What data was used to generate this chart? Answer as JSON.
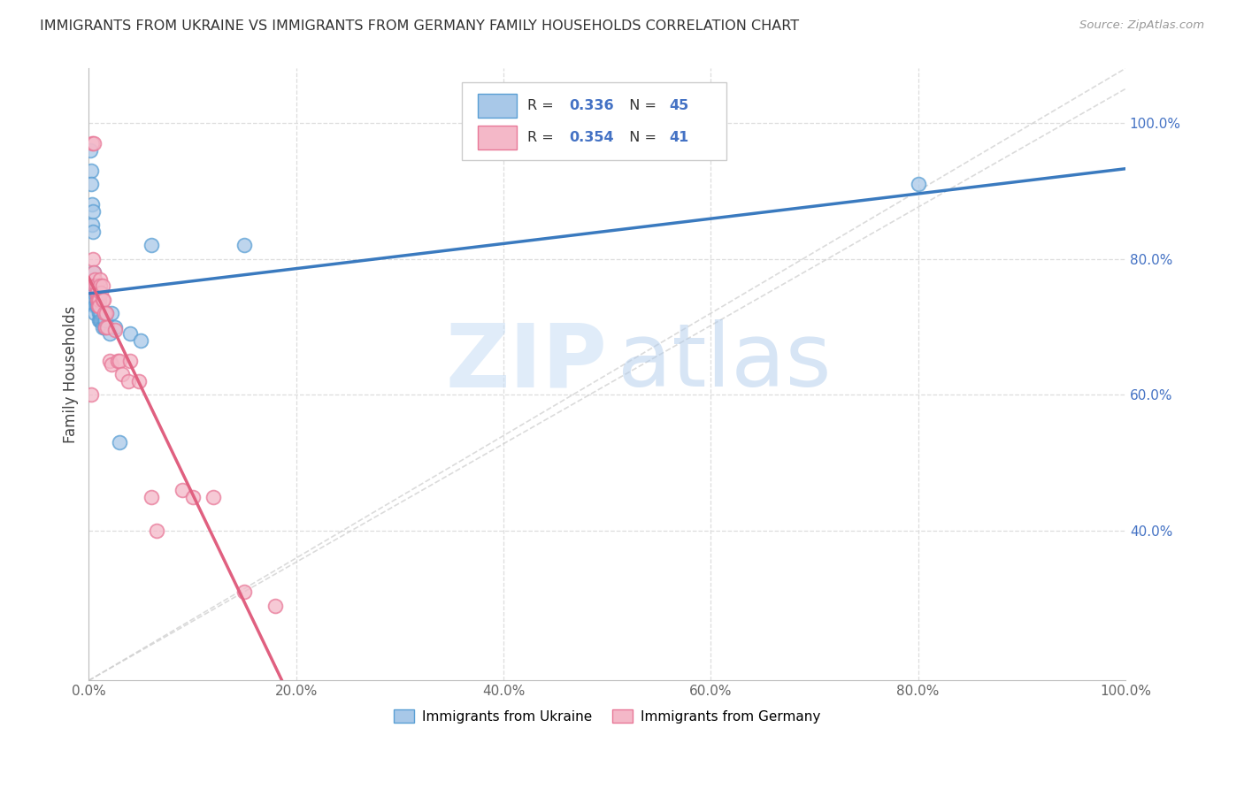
{
  "title": "IMMIGRANTS FROM UKRAINE VS IMMIGRANTS FROM GERMANY FAMILY HOUSEHOLDS CORRELATION CHART",
  "source": "Source: ZipAtlas.com",
  "ylabel": "Family Households",
  "R_ukraine": 0.336,
  "N_ukraine": 45,
  "R_germany": 0.354,
  "N_germany": 41,
  "color_ukraine": "#a8c8e8",
  "color_germany": "#f4b8c8",
  "color_ukraine_edge": "#5a9fd4",
  "color_germany_edge": "#e87898",
  "color_ukraine_line": "#3a7abf",
  "color_germany_line": "#e06080",
  "color_dashed": "#cccccc",
  "ukraine_x": [
    0.001,
    0.002,
    0.002,
    0.003,
    0.003,
    0.004,
    0.004,
    0.005,
    0.005,
    0.005,
    0.006,
    0.006,
    0.006,
    0.006,
    0.007,
    0.007,
    0.007,
    0.007,
    0.008,
    0.008,
    0.008,
    0.009,
    0.009,
    0.01,
    0.01,
    0.01,
    0.011,
    0.011,
    0.012,
    0.012,
    0.013,
    0.013,
    0.015,
    0.015,
    0.016,
    0.017,
    0.02,
    0.022,
    0.025,
    0.03,
    0.04,
    0.05,
    0.06,
    0.15,
    0.8
  ],
  "ukraine_y": [
    0.96,
    0.93,
    0.91,
    0.88,
    0.85,
    0.87,
    0.84,
    0.78,
    0.76,
    0.75,
    0.76,
    0.74,
    0.73,
    0.72,
    0.76,
    0.75,
    0.74,
    0.73,
    0.75,
    0.74,
    0.73,
    0.74,
    0.73,
    0.73,
    0.72,
    0.71,
    0.72,
    0.71,
    0.72,
    0.71,
    0.71,
    0.7,
    0.71,
    0.7,
    0.71,
    0.72,
    0.69,
    0.72,
    0.7,
    0.53,
    0.69,
    0.68,
    0.82,
    0.82,
    0.91
  ],
  "germany_x": [
    0.002,
    0.003,
    0.004,
    0.005,
    0.005,
    0.006,
    0.006,
    0.007,
    0.007,
    0.008,
    0.008,
    0.009,
    0.009,
    0.01,
    0.01,
    0.011,
    0.011,
    0.012,
    0.013,
    0.013,
    0.014,
    0.015,
    0.016,
    0.017,
    0.018,
    0.02,
    0.022,
    0.025,
    0.028,
    0.03,
    0.032,
    0.038,
    0.04,
    0.048,
    0.06,
    0.065,
    0.09,
    0.1,
    0.12,
    0.15,
    0.18
  ],
  "germany_y": [
    0.6,
    0.97,
    0.8,
    0.97,
    0.78,
    0.77,
    0.76,
    0.76,
    0.75,
    0.75,
    0.74,
    0.74,
    0.73,
    0.74,
    0.73,
    0.77,
    0.76,
    0.75,
    0.76,
    0.74,
    0.74,
    0.72,
    0.7,
    0.72,
    0.7,
    0.65,
    0.645,
    0.695,
    0.65,
    0.65,
    0.63,
    0.62,
    0.65,
    0.62,
    0.45,
    0.4,
    0.46,
    0.45,
    0.45,
    0.31,
    0.29
  ],
  "background_color": "#ffffff",
  "grid_color": "#dddddd",
  "xlim": [
    0,
    1.0
  ],
  "ylim": [
    0.18,
    1.08
  ]
}
